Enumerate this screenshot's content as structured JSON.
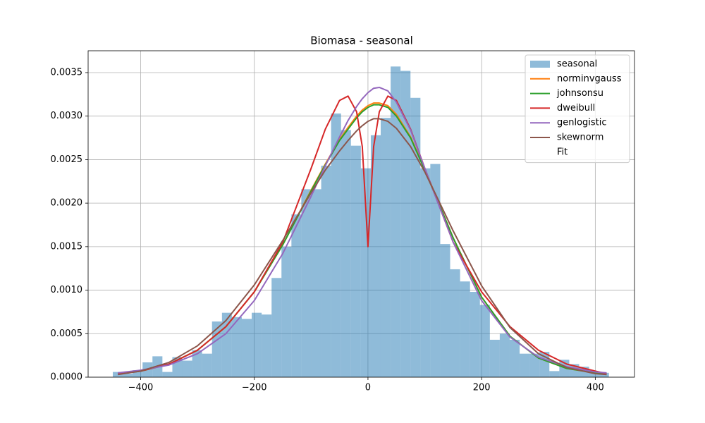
{
  "chart_data": {
    "type": "histogram",
    "title": "Biomasa - seasonal",
    "histogram": {
      "name": "seasonal",
      "color": "#1f77b4",
      "bins": [
        -449.0,
        -431.5,
        -414.1,
        -396.6,
        -379.2,
        -361.7,
        -344.2,
        -326.8,
        -309.3,
        -291.9,
        -274.4,
        -256.9,
        -239.5,
        -222.0,
        -204.6,
        -187.1,
        -169.6,
        -152.2,
        -134.7,
        -117.3,
        -99.8,
        -82.3,
        -64.9,
        -47.4,
        -30.0,
        -12.5,
        5.0,
        22.4,
        39.9,
        57.3,
        74.8,
        92.3,
        109.7,
        127.2,
        144.6,
        162.1,
        179.6,
        197.0,
        214.5,
        231.9,
        249.4,
        266.9,
        284.3,
        301.8,
        319.2,
        336.7,
        354.2,
        371.6,
        389.1,
        406.5,
        424.0
      ],
      "values": [
        6e-05,
        4e-05,
        8e-05,
        0.00017,
        0.00024,
        6e-05,
        0.00023,
        0.00019,
        0.00031,
        0.00027,
        0.00064,
        0.00074,
        0.00069,
        0.00067,
        0.00074,
        0.00072,
        0.00114,
        0.0015,
        0.00187,
        0.00216,
        0.00216,
        0.00243,
        0.00303,
        0.00284,
        0.00266,
        0.0024,
        0.00278,
        0.00298,
        0.00357,
        0.00352,
        0.00321,
        0.0024,
        0.00245,
        0.00153,
        0.00124,
        0.0011,
        0.00098,
        0.00083,
        0.00043,
        0.0005,
        0.00043,
        0.00027,
        0.00027,
        0.00029,
        7e-05,
        0.0002,
        0.00015,
        0.00012,
        5e-05,
        5e-05
      ]
    },
    "x": [
      -440,
      -400,
      -350,
      -300,
      -250,
      -200,
      -150,
      -100,
      -75,
      -50,
      -35,
      -20,
      -10,
      0,
      10,
      20,
      35,
      50,
      75,
      100,
      150,
      200,
      250,
      300,
      350,
      400,
      420
    ],
    "series": [
      {
        "name": "norminvgauss",
        "color": "#ff7f0e",
        "values": [
          4e-05,
          7e-05,
          0.00015,
          0.00031,
          0.00058,
          0.00098,
          0.00152,
          0.00215,
          0.00245,
          0.00273,
          0.00287,
          0.003,
          0.00307,
          0.00312,
          0.00315,
          0.00315,
          0.00312,
          0.00302,
          0.00276,
          0.00239,
          0.0016,
          0.00092,
          0.00047,
          0.00022,
          0.0001,
          5e-05,
          4e-05
        ]
      },
      {
        "name": "johnsonsu",
        "color": "#2ca02c",
        "values": [
          4e-05,
          7e-05,
          0.00015,
          0.00031,
          0.00058,
          0.00098,
          0.00152,
          0.00214,
          0.00244,
          0.00272,
          0.00285,
          0.00298,
          0.00305,
          0.0031,
          0.00313,
          0.00313,
          0.0031,
          0.003,
          0.00275,
          0.00238,
          0.0016,
          0.00092,
          0.00047,
          0.00022,
          0.0001,
          5e-05,
          4e-05
        ]
      },
      {
        "name": "dweibull",
        "color": "#d62728",
        "values": [
          4e-05,
          7e-05,
          0.00015,
          0.00031,
          0.00058,
          0.00098,
          0.00155,
          0.0024,
          0.00285,
          0.00318,
          0.00323,
          0.00305,
          0.00265,
          0.0015,
          0.00265,
          0.00305,
          0.00323,
          0.00318,
          0.00285,
          0.0024,
          0.00155,
          0.00098,
          0.00058,
          0.00031,
          0.00015,
          7e-05,
          4e-05
        ]
      },
      {
        "name": "genlogistic",
        "color": "#9467bd",
        "values": [
          5e-05,
          8e-05,
          0.00014,
          0.00027,
          0.0005,
          0.00088,
          0.00142,
          0.00208,
          0.00243,
          0.00276,
          0.00295,
          0.00311,
          0.0032,
          0.00327,
          0.00332,
          0.00333,
          0.00329,
          0.00316,
          0.00284,
          0.0024,
          0.00155,
          0.00088,
          0.00046,
          0.00023,
          0.00012,
          6e-05,
          5e-05
        ]
      },
      {
        "name": "skewnorm",
        "color": "#8c564b",
        "values": [
          3e-05,
          7e-05,
          0.00017,
          0.00036,
          0.00065,
          0.00106,
          0.00157,
          0.00212,
          0.00238,
          0.0026,
          0.00272,
          0.00283,
          0.00289,
          0.00294,
          0.00297,
          0.00297,
          0.00294,
          0.00286,
          0.00265,
          0.00236,
          0.00168,
          0.00105,
          0.00057,
          0.00027,
          0.00011,
          4e-05,
          3e-05
        ]
      }
    ],
    "legend_extra": "Fit",
    "legend": "upper right",
    "grid": true,
    "xlim": [
      -492.4,
      469.0
    ],
    "ylim": [
      0,
      0.003751
    ],
    "xticks": [
      {
        "value": -400,
        "label": "−400"
      },
      {
        "value": -200,
        "label": "−200"
      },
      0,
      200,
      400
    ],
    "yticks": [
      {
        "value": 0,
        "label": "0.0000"
      },
      {
        "value": 0.0005,
        "label": "0.0005"
      },
      {
        "value": 0.001,
        "label": "0.0010"
      },
      {
        "value": 0.0015,
        "label": "0.0015"
      },
      {
        "value": 0.002,
        "label": "0.0020"
      },
      {
        "value": 0.0025,
        "label": "0.0025"
      },
      {
        "value": 0.003,
        "label": "0.0030"
      },
      {
        "value": 0.0035,
        "label": "0.0035"
      }
    ]
  }
}
